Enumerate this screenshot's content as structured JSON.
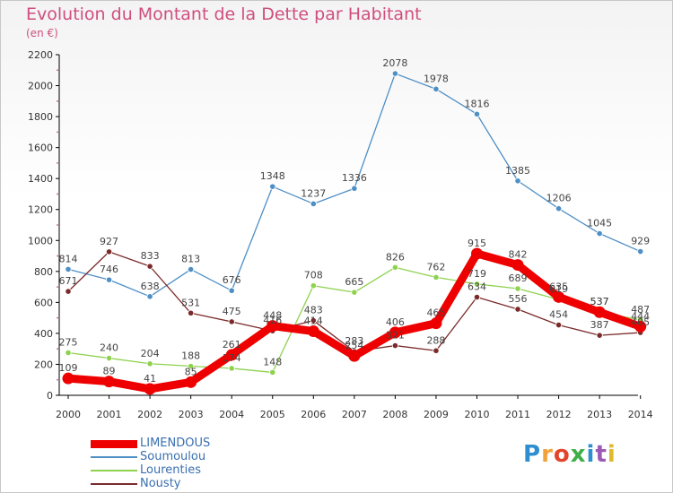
{
  "header": {
    "title": "Evolution du Montant de la Dette par Habitant",
    "subtitle": "(en €)"
  },
  "logo": {
    "text": "Proxiti",
    "colors": [
      "#2f8ecf",
      "#f2a23a",
      "#e2452b",
      "#3fae49",
      "#2f8ecf",
      "#9c59b6",
      "#e0b92b"
    ]
  },
  "colors": {
    "title": "#d04e7e",
    "axis": "#000000",
    "grid": "#dddddd"
  },
  "chart_data": {
    "type": "line",
    "title": "Evolution du Montant de la Dette par Habitant",
    "subtitle": "(en €)",
    "x": [
      "2000",
      "2001",
      "2002",
      "2003",
      "2004",
      "2005",
      "2006",
      "2007",
      "2008",
      "2009",
      "2010",
      "2011",
      "2012",
      "2013",
      "2014"
    ],
    "ylim": [
      0,
      2200
    ],
    "yticks": [
      0,
      200,
      400,
      600,
      800,
      1000,
      1200,
      1400,
      1600,
      1800,
      2000,
      2200
    ],
    "grid": false,
    "legend_position": "bottom-left",
    "series": [
      {
        "name": "Soumoulou",
        "color": "#4e8fc6",
        "values": [
          814,
          746,
          638,
          813,
          676,
          1348,
          1237,
          1336,
          2078,
          1978,
          1816,
          1385,
          1206,
          1045,
          929
        ],
        "labels": [
          "814",
          "746",
          "638",
          "813",
          "676",
          "1348",
          "1237",
          "1336",
          "2078",
          "1978",
          "1816",
          "1385",
          "1206",
          "1045",
          "929"
        ]
      },
      {
        "name": "Lourenties",
        "color": "#8fd24f",
        "values": [
          275,
          240,
          204,
          188,
          174,
          148,
          708,
          665,
          826,
          762,
          719,
          689,
          619,
          537,
          487
        ],
        "labels": [
          "275",
          "240",
          "204",
          "188",
          "174",
          "148",
          "708",
          "665",
          "826",
          "762",
          "719",
          "689",
          "619",
          "537",
          "487"
        ]
      },
      {
        "name": "Nousty",
        "color": "#7a2a2a",
        "values": [
          671,
          927,
          833,
          531,
          475,
          416,
          483,
          283,
          321,
          288,
          634,
          556,
          454,
          387,
          405
        ],
        "labels": [
          "671",
          "927",
          "833",
          "531",
          "475",
          "416",
          "483",
          "283",
          "321",
          "288",
          "634",
          "556",
          "454",
          "387",
          "405"
        ]
      },
      {
        "name": "LIMENDOUS",
        "color": "#ee0000",
        "values": [
          109,
          89,
          41,
          85,
          261,
          448,
          414,
          254,
          406,
          465,
          915,
          842,
          635,
          537,
          444
        ],
        "labels": [
          "109",
          "89",
          "41",
          "85",
          "261",
          "448",
          "414",
          "254",
          "406",
          "465",
          "915",
          "842",
          "635",
          "537",
          "444"
        ]
      }
    ]
  },
  "legend": {
    "items": [
      {
        "label": "LIMENDOUS",
        "color": "#ee0000",
        "thickness": 9
      },
      {
        "label": "Soumoulou",
        "color": "#4e8fc6",
        "thickness": 2
      },
      {
        "label": "Lourenties",
        "color": "#8fd24f",
        "thickness": 2
      },
      {
        "label": "Nousty",
        "color": "#7a2a2a",
        "thickness": 2
      }
    ]
  }
}
